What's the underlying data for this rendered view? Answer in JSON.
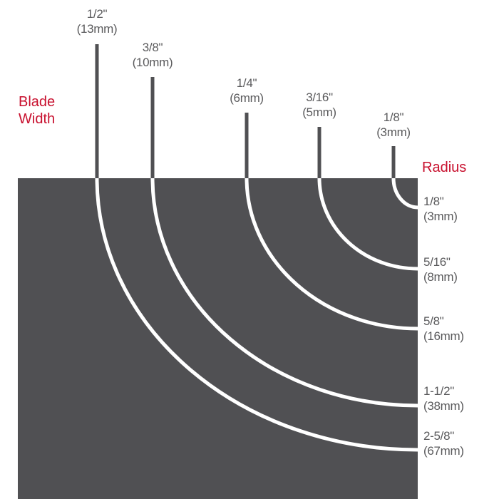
{
  "colors": {
    "background_block": "#505053",
    "lines": "#505053",
    "arcs": "#ffffff",
    "accent": "#c8102e",
    "text": "#5a5a5c"
  },
  "blade_width_title": [
    "Blade",
    "Width"
  ],
  "radius_title": "Radius",
  "blades": [
    {
      "inch": "1/2\"",
      "mm": "(13mm)"
    },
    {
      "inch": "3/8\"",
      "mm": "(10mm)"
    },
    {
      "inch": "1/4\"",
      "mm": "(6mm)"
    },
    {
      "inch": "3/16\"",
      "mm": "(5mm)"
    },
    {
      "inch": "1/8\"",
      "mm": "(3mm)"
    }
  ],
  "radii": [
    {
      "inch": "1/8\"",
      "mm": "(3mm)"
    },
    {
      "inch": "5/16\"",
      "mm": "(8mm)"
    },
    {
      "inch": "5/8\"",
      "mm": "(16mm)"
    },
    {
      "inch": "1-1/2\"",
      "mm": "(38mm)"
    },
    {
      "inch": "2-5/8\"",
      "mm": "(67mm)"
    }
  ]
}
